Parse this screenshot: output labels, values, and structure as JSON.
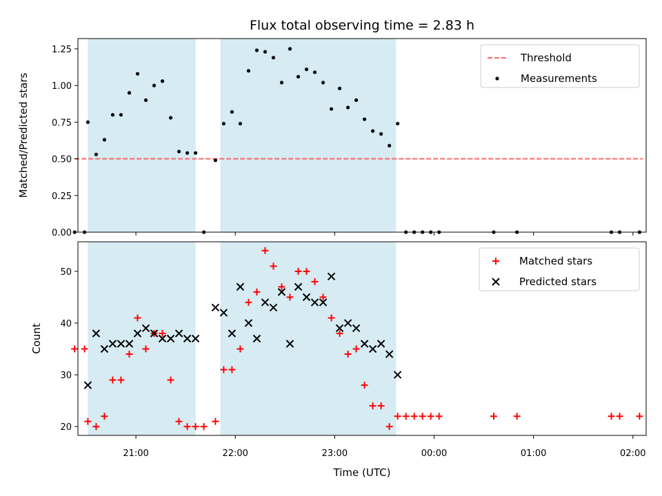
{
  "chart_data": {
    "title": "Flux total observing time = 2.83 h",
    "xlabel": "Time (UTC)",
    "x_ticks": [
      "21:00",
      "22:00",
      "23:00",
      "00:00",
      "01:00",
      "02:00"
    ],
    "x_range": [
      "20:25",
      "02:08"
    ],
    "shaded_intervals": [
      [
        "20:31",
        "21:36"
      ],
      [
        "21:51",
        "23:37"
      ]
    ],
    "shade_color": "#add8e6",
    "panels": [
      {
        "type": "scatter",
        "ylabel": "Matched/Predicted stars",
        "ylim": [
          0,
          1.32
        ],
        "yticks": [
          "0.00",
          "0.25",
          "0.50",
          "0.75",
          "1.00",
          "1.25"
        ],
        "legend_position": "upper right",
        "series": [
          {
            "name": "Threshold",
            "type": "line",
            "color": "#ff6666",
            "style": "dashed",
            "x": [
              "20:23",
              "02:06"
            ],
            "y": [
              0.5,
              0.5
            ]
          },
          {
            "name": "Measurements",
            "type": "scatter",
            "color": "#000000",
            "marker": "dot",
            "x": [
              "20:23",
              "20:29",
              "20:31",
              "20:36",
              "20:41",
              "20:46",
              "20:51",
              "20:56",
              "21:01",
              "21:06",
              "21:11",
              "21:16",
              "21:21",
              "21:26",
              "21:31",
              "21:36",
              "21:41",
              "21:48",
              "21:53",
              "21:58",
              "22:03",
              "22:08",
              "22:13",
              "22:18",
              "22:23",
              "22:28",
              "22:33",
              "22:38",
              "22:43",
              "22:48",
              "22:53",
              "22:58",
              "23:03",
              "23:08",
              "23:13",
              "23:18",
              "23:23",
              "23:28",
              "23:33",
              "23:38",
              "23:43",
              "23:48",
              "23:53",
              "23:58",
              "00:03",
              "00:36",
              "00:50",
              "01:47",
              "01:52",
              "02:04"
            ],
            "y": [
              0,
              0,
              0.75,
              0.53,
              0.63,
              0.8,
              0.8,
              0.95,
              1.08,
              0.9,
              1.0,
              1.03,
              0.78,
              0.55,
              0.54,
              0.54,
              0,
              0.49,
              0.74,
              0.82,
              0.74,
              1.1,
              1.24,
              1.23,
              1.19,
              1.02,
              1.25,
              1.06,
              1.11,
              1.09,
              1.02,
              0.84,
              0.98,
              0.85,
              0.9,
              0.77,
              0.69,
              0.67,
              0.59,
              0.74,
              0,
              0,
              0,
              0,
              0,
              0,
              0,
              0,
              0,
              0
            ]
          }
        ]
      },
      {
        "type": "scatter",
        "ylabel": "Count",
        "ylim": [
          18.3,
          55.7
        ],
        "yticks": [
          "20",
          "30",
          "40",
          "50"
        ],
        "legend_position": "upper right",
        "series": [
          {
            "name": "Matched stars",
            "type": "scatter",
            "color": "#ff0000",
            "marker": "plus",
            "x": [
              "20:23",
              "20:29",
              "20:31",
              "20:36",
              "20:41",
              "20:46",
              "20:51",
              "20:56",
              "21:01",
              "21:06",
              "21:11",
              "21:16",
              "21:21",
              "21:26",
              "21:31",
              "21:36",
              "21:41",
              "21:48",
              "21:53",
              "21:58",
              "22:03",
              "22:08",
              "22:13",
              "22:18",
              "22:23",
              "22:28",
              "22:33",
              "22:38",
              "22:43",
              "22:48",
              "22:53",
              "22:58",
              "23:03",
              "23:08",
              "23:13",
              "23:18",
              "23:23",
              "23:28",
              "23:33",
              "23:38",
              "23:43",
              "23:48",
              "23:53",
              "23:58",
              "00:03",
              "00:36",
              "00:50",
              "01:47",
              "01:52",
              "02:04"
            ],
            "y": [
              35,
              35,
              21,
              20,
              22,
              29,
              29,
              34,
              41,
              35,
              38,
              38,
              29,
              21,
              20,
              20,
              20,
              21,
              31,
              31,
              35,
              44,
              46,
              54,
              51,
              47,
              45,
              50,
              50,
              48,
              45,
              41,
              38,
              34,
              35,
              28,
              24,
              24,
              20,
              22,
              22,
              22,
              22,
              22,
              22,
              22,
              22,
              22,
              22,
              22
            ]
          },
          {
            "name": "Predicted stars",
            "type": "scatter",
            "color": "#000000",
            "marker": "x",
            "x": [
              "20:31",
              "20:36",
              "20:41",
              "20:46",
              "20:51",
              "20:56",
              "21:01",
              "21:06",
              "21:11",
              "21:16",
              "21:21",
              "21:26",
              "21:31",
              "21:36",
              "21:48",
              "21:53",
              "21:58",
              "22:03",
              "22:08",
              "22:13",
              "22:18",
              "22:23",
              "22:28",
              "22:33",
              "22:38",
              "22:43",
              "22:48",
              "22:53",
              "22:58",
              "23:03",
              "23:08",
              "23:13",
              "23:18",
              "23:23",
              "23:28",
              "23:33",
              "23:38"
            ],
            "y": [
              28,
              38,
              35,
              36,
              36,
              36,
              38,
              39,
              38,
              37,
              37,
              38,
              37,
              37,
              43,
              42,
              38,
              47,
              40,
              37,
              44,
              43,
              46,
              36,
              47,
              45,
              44,
              44,
              49,
              39,
              40,
              39,
              36,
              35,
              36,
              34,
              30
            ]
          }
        ]
      }
    ]
  }
}
